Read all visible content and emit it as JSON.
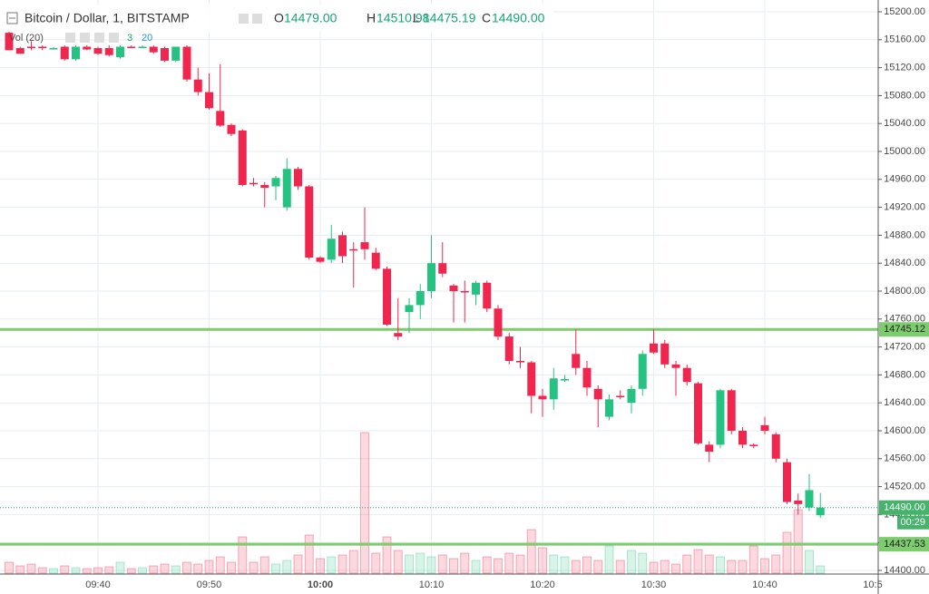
{
  "chart_data": {
    "type": "candlestick",
    "title": "Bitcoin / Dollar, 1, BITSTAMP",
    "header_keys": [
      "O",
      "H",
      "L",
      "C"
    ],
    "header_values": [
      {
        "value": 14479,
        "label": "14479.00"
      },
      {
        "value": 14510.98,
        "label": "14510.98"
      },
      {
        "value": 14475.19,
        "label": "14475.19"
      },
      {
        "value": 14490,
        "label": "14490.00"
      }
    ],
    "volume_title": "Vol (20)",
    "volume_params": [
      3,
      20
    ],
    "up_color": "#26c281",
    "down_color": "#f0264f",
    "categories": [
      null,
      null,
      null,
      null,
      null,
      null,
      null,
      null,
      "09:40",
      null,
      null,
      null,
      null,
      null,
      null,
      null,
      null,
      null,
      "09:50",
      null,
      null,
      null,
      null,
      null,
      null,
      null,
      null,
      null,
      "10:00",
      null,
      null,
      null,
      null,
      null,
      null,
      null,
      null,
      null,
      "10:10",
      null,
      null,
      null,
      null,
      null,
      null,
      null,
      null,
      null,
      "10:20",
      null,
      null,
      null,
      null,
      null,
      null,
      null,
      null,
      null,
      "10:30",
      null,
      null,
      null,
      null,
      null,
      null,
      null,
      null,
      null,
      "10:40",
      null,
      null,
      null,
      null,
      null
    ],
    "x_cut_label": "10:5",
    "open": [
      15170,
      15148,
      15150,
      15150,
      15148,
      15150,
      15132,
      15150,
      15148,
      15148,
      15135,
      15150,
      15150,
      15150,
      15148,
      15130,
      15150,
      15103,
      15085,
      15058,
      15038,
      15030,
      14955,
      14952,
      14950,
      14920,
      14975,
      14950,
      14848,
      14845,
      14880,
      14860,
      14870,
      14855,
      14832,
      14740,
      14770,
      14780,
      14800,
      14840,
      14808,
      14800,
      14795,
      14812,
      14775,
      14735,
      14700,
      14698,
      14650,
      14645,
      14672,
      14710,
      14690,
      14660,
      14620,
      14650,
      14640,
      14660,
      14725,
      14725,
      14695,
      14690,
      14668,
      14580,
      14580,
      14658,
      14600,
      14580,
      14608,
      14595,
      14555,
      14500,
      14490,
      14479
    ],
    "high": [
      15175,
      15150,
      15158,
      15152,
      15150,
      15152,
      15152,
      15152,
      15150,
      15152,
      15152,
      15152,
      15152,
      15152,
      15150,
      15150,
      15152,
      15120,
      15112,
      15125,
      15040,
      15032,
      14962,
      14956,
      14965,
      14990,
      14978,
      14952,
      14850,
      14895,
      14885,
      14870,
      14920,
      14862,
      14835,
      14790,
      14790,
      14810,
      14880,
      14870,
      14810,
      14815,
      14815,
      14815,
      14780,
      14740,
      14720,
      14700,
      14660,
      14690,
      14680,
      14745,
      14700,
      14665,
      14652,
      14658,
      14665,
      14715,
      14745,
      14730,
      14700,
      14695,
      14670,
      14585,
      14660,
      14660,
      14605,
      14582,
      14620,
      14598,
      14560,
      14510,
      14538,
      14510.98
    ],
    "low": [
      15145,
      15140,
      15145,
      15145,
      15146,
      15130,
      15130,
      15145,
      15138,
      15136,
      15133,
      15148,
      15148,
      15140,
      15128,
      15128,
      15100,
      15080,
      15060,
      15035,
      15022,
      14950,
      14950,
      14920,
      14930,
      14915,
      14945,
      14845,
      14840,
      14840,
      14840,
      14805,
      14845,
      14830,
      14750,
      14730,
      14740,
      14760,
      14790,
      14820,
      14755,
      14755,
      14780,
      14770,
      14730,
      14695,
      14690,
      14625,
      14620,
      14630,
      14670,
      14680,
      14650,
      14605,
      14615,
      14645,
      14625,
      14650,
      14710,
      14690,
      14650,
      14665,
      14580,
      14555,
      14575,
      14595,
      14575,
      14575,
      14595,
      14555,
      14495,
      14480,
      14485,
      14475.19
    ],
    "close": [
      15145,
      15140,
      15148,
      15148,
      15148,
      15132,
      15150,
      15146,
      15140,
      15138,
      15150,
      15149,
      15150,
      15142,
      15130,
      15150,
      15103,
      15085,
      15062,
      15037,
      15025,
      14952,
      14953,
      14948,
      14962,
      14975,
      14950,
      14848,
      14842,
      14875,
      14850,
      14858,
      14860,
      14832,
      14752,
      14735,
      14780,
      14800,
      14840,
      14825,
      14800,
      14798,
      14812,
      14775,
      14735,
      14700,
      14698,
      14650,
      14645,
      14675,
      14674,
      14690,
      14662,
      14645,
      14645,
      14648,
      14660,
      14710,
      14712,
      14695,
      14690,
      14670,
      14582,
      14570,
      14658,
      14600,
      14580,
      14578,
      14600,
      14560,
      14498,
      14495,
      14515,
      14490
    ],
    "volume": [
      12,
      8,
      10,
      6,
      5,
      8,
      6,
      5,
      6,
      7,
      12,
      5,
      6,
      8,
      10,
      8,
      12,
      10,
      14,
      18,
      12,
      40,
      12,
      18,
      10,
      14,
      20,
      42,
      16,
      18,
      20,
      25,
      155,
      22,
      40,
      25,
      20,
      22,
      18,
      20,
      16,
      22,
      14,
      18,
      16,
      22,
      20,
      48,
      28,
      20,
      18,
      14,
      18,
      14,
      30,
      14,
      25,
      22,
      12,
      14,
      10,
      20,
      26,
      20,
      18,
      14,
      14,
      30,
      16,
      20,
      45,
      70,
      25,
      8
    ],
    "ylim": [
      14400,
      15200
    ],
    "yticks": [
      {
        "value": 14400,
        "label": "14400.00"
      },
      {
        "value": 14440,
        "label": "14440.00"
      },
      {
        "value": 14480,
        "label": "14480.00"
      },
      {
        "value": 14520,
        "label": "14520.00"
      },
      {
        "value": 14560,
        "label": "14560.00"
      },
      {
        "value": 14600,
        "label": "14600.00"
      },
      {
        "value": 14640,
        "label": "14640.00"
      },
      {
        "value": 14680,
        "label": "14680.00"
      },
      {
        "value": 14720,
        "label": "14720.00"
      },
      {
        "value": 14760,
        "label": "14760.00"
      },
      {
        "value": 14800,
        "label": "14800.00"
      },
      {
        "value": 14840,
        "label": "14840.00"
      },
      {
        "value": 14880,
        "label": "14880.00"
      },
      {
        "value": 14920,
        "label": "14920.00"
      },
      {
        "value": 14960,
        "label": "14960.00"
      },
      {
        "value": 15000,
        "label": "15000.00"
      },
      {
        "value": 15040,
        "label": "15040.00"
      },
      {
        "value": 15080,
        "label": "15080.00"
      },
      {
        "value": 15120,
        "label": "15120.00"
      },
      {
        "value": 15160,
        "label": "15160.00"
      },
      {
        "value": 15200,
        "label": "15200.00"
      }
    ],
    "levels": [
      {
        "value": 14745.12,
        "label": "14745.12"
      },
      {
        "value": 14437.53,
        "label": "14437.53"
      }
    ],
    "level_color": "#7dcc6e",
    "last_price": {
      "value": 14490,
      "label": "14490.00"
    },
    "countdown": "00:29",
    "grid": true
  }
}
